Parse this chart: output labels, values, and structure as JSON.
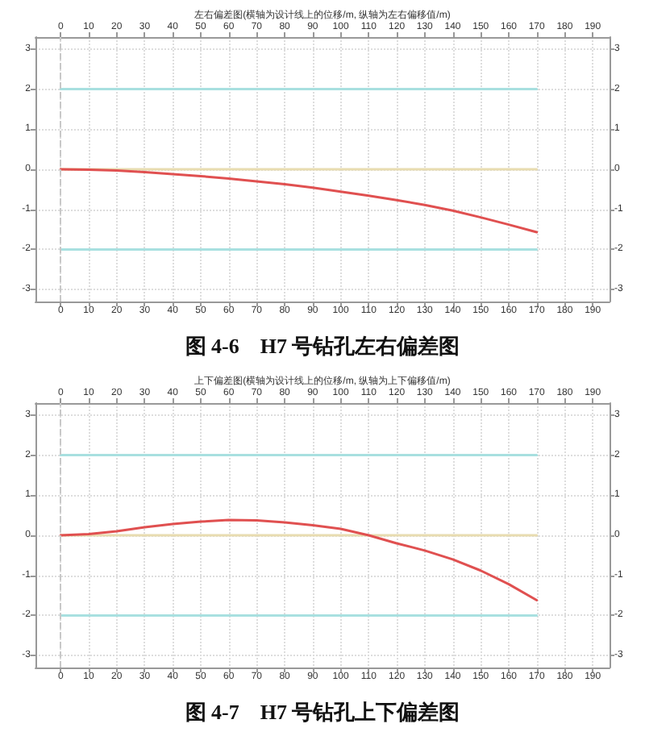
{
  "chart_data": [
    {
      "type": "line",
      "title": "左右偏差图(横轴为设计线上的位移/m, 纵轴为左右偏移值/m)",
      "annotations": [
        "图 4-6　H7 号钻孔左右偏差图"
      ],
      "xlim": [
        -9,
        196
      ],
      "xticks": [
        0,
        10,
        20,
        30,
        40,
        50,
        60,
        70,
        80,
        90,
        100,
        110,
        120,
        130,
        140,
        150,
        160,
        170,
        180,
        190
      ],
      "x2lim": [
        -9,
        196
      ],
      "x2ticks": [
        0,
        10,
        20,
        30,
        40,
        50,
        60,
        70,
        80,
        90,
        100,
        110,
        120,
        130,
        140,
        150,
        160,
        170,
        180,
        190
      ],
      "ylim": [
        -3.3,
        3.3
      ],
      "yticks": [
        -3,
        -2,
        -1,
        0,
        1,
        2,
        3
      ],
      "y2lim": [
        -3.3,
        3.3
      ],
      "y2ticks": [
        -3,
        -2,
        -1,
        0,
        1,
        2,
        3
      ],
      "grid": true,
      "marker": "none",
      "line_style": "solid",
      "ref_lines": [
        {
          "axis": "x",
          "value": 0,
          "color": "#c8c8c8",
          "line_style": "dashed"
        }
      ],
      "series": [
        {
          "color": "#a8e0e0",
          "x": [
            0,
            170
          ],
          "values": [
            2,
            2
          ]
        },
        {
          "color": "#a8e0e0",
          "x": [
            0,
            170
          ],
          "values": [
            -2,
            -2
          ]
        },
        {
          "color": "#e8dcb0",
          "x": [
            0,
            170
          ],
          "values": [
            0,
            0
          ]
        },
        {
          "color": "#e05050",
          "x": [
            0,
            10,
            20,
            30,
            40,
            50,
            60,
            70,
            80,
            90,
            100,
            110,
            120,
            130,
            140,
            150,
            160,
            170
          ],
          "values": [
            0,
            -0.01,
            -0.03,
            -0.07,
            -0.12,
            -0.17,
            -0.23,
            -0.3,
            -0.37,
            -0.46,
            -0.56,
            -0.66,
            -0.77,
            -0.89,
            -1.03,
            -1.2,
            -1.38,
            -1.57
          ]
        }
      ]
    },
    {
      "type": "line",
      "title": "上下偏差图(横轴为设计线上的位移/m, 纵轴为上下偏移值/m)",
      "annotations": [
        "图 4-7　H7 号钻孔上下偏差图"
      ],
      "xlim": [
        -9,
        196
      ],
      "xticks": [
        0,
        10,
        20,
        30,
        40,
        50,
        60,
        70,
        80,
        90,
        100,
        110,
        120,
        130,
        140,
        150,
        160,
        170,
        180,
        190
      ],
      "x2lim": [
        -9,
        196
      ],
      "x2ticks": [
        0,
        10,
        20,
        30,
        40,
        50,
        60,
        70,
        80,
        90,
        100,
        110,
        120,
        130,
        140,
        150,
        160,
        170,
        180,
        190
      ],
      "ylim": [
        -3.3,
        3.3
      ],
      "yticks": [
        -3,
        -2,
        -1,
        0,
        1,
        2,
        3
      ],
      "y2lim": [
        -3.3,
        3.3
      ],
      "y2ticks": [
        -3,
        -2,
        -1,
        0,
        1,
        2,
        3
      ],
      "grid": true,
      "marker": "none",
      "line_style": "solid",
      "ref_lines": [
        {
          "axis": "x",
          "value": 0,
          "color": "#c8c8c8",
          "line_style": "dashed"
        }
      ],
      "series": [
        {
          "color": "#a8e0e0",
          "x": [
            0,
            170
          ],
          "values": [
            2,
            2
          ]
        },
        {
          "color": "#a8e0e0",
          "x": [
            0,
            170
          ],
          "values": [
            -2,
            -2
          ]
        },
        {
          "color": "#e8dcb0",
          "x": [
            0,
            170
          ],
          "values": [
            0,
            0
          ]
        },
        {
          "color": "#e05050",
          "x": [
            0,
            10,
            20,
            30,
            40,
            50,
            60,
            70,
            80,
            90,
            100,
            110,
            120,
            130,
            140,
            150,
            160,
            170
          ],
          "values": [
            0,
            0.03,
            0.1,
            0.2,
            0.28,
            0.34,
            0.38,
            0.37,
            0.32,
            0.25,
            0.16,
            0,
            -0.2,
            -0.38,
            -0.6,
            -0.88,
            -1.22,
            -1.62
          ]
        }
      ]
    }
  ]
}
